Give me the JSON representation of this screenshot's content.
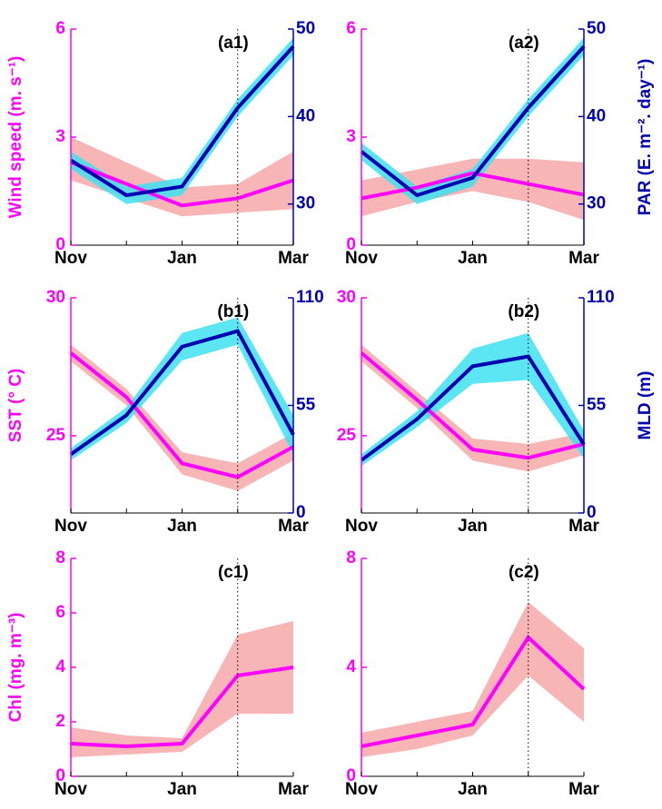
{
  "chart_data": [
    {
      "type": "line",
      "annotation": "(a1)",
      "ylabel": "Wind speed (m. s⁻¹)",
      "categories": [
        "Nov",
        null,
        "Jan",
        null,
        "Mar"
      ],
      "ylim": [
        0,
        6
      ],
      "yticks": [
        0,
        3,
        6
      ],
      "y2lim": [
        25.3,
        50
      ],
      "y2ticks": [
        30,
        40,
        50
      ],
      "series": [
        {
          "color": "#ff00ff",
          "band_color": "#f6a8a8",
          "values": [
            2.3,
            1.7,
            1.1,
            1.3,
            1.8
          ],
          "band_low": [
            1.8,
            1.3,
            0.8,
            0.9,
            1.0
          ],
          "band_high": [
            3.0,
            2.3,
            1.6,
            1.7,
            2.6
          ]
        },
        {
          "axis": "y2",
          "color": "#0000b0",
          "band_color": "#40e0f0",
          "values": [
            35,
            31,
            32,
            41,
            48
          ],
          "band_low": [
            34,
            30,
            31,
            40,
            47
          ],
          "band_high": [
            36,
            32,
            33,
            42,
            49
          ]
        }
      ]
    },
    {
      "type": "line",
      "annotation": "(a2)",
      "y2label": "PAR (E. m⁻². day⁻¹)",
      "categories": [
        "Nov",
        null,
        "Jan",
        null,
        "Mar"
      ],
      "ylim": [
        0,
        6
      ],
      "yticks": [
        0,
        3,
        6
      ],
      "y2lim": [
        25.3,
        50
      ],
      "y2ticks": [
        30,
        40,
        50
      ],
      "series": [
        {
          "color": "#ff00ff",
          "band_color": "#f6a8a8",
          "values": [
            1.3,
            1.6,
            2.0,
            1.7,
            1.4
          ],
          "band_low": [
            0.8,
            1.2,
            1.5,
            1.2,
            0.7
          ],
          "band_high": [
            1.8,
            2.1,
            2.4,
            2.4,
            2.3
          ]
        },
        {
          "axis": "y2",
          "color": "#0000b0",
          "band_color": "#40e0f0",
          "values": [
            36,
            31,
            33,
            41,
            48
          ],
          "band_low": [
            35,
            30,
            32,
            40,
            47
          ],
          "band_high": [
            37,
            32,
            34,
            42,
            49
          ]
        }
      ]
    },
    {
      "type": "line",
      "annotation": "(b1)",
      "ylabel": "SST (° C)",
      "categories": [
        "Nov",
        null,
        "Jan",
        null,
        "Mar"
      ],
      "ylim": [
        22.2,
        30
      ],
      "yticks": [
        25,
        30
      ],
      "y2lim": [
        0,
        110
      ],
      "y2ticks": [
        0,
        55,
        110
      ],
      "series": [
        {
          "color": "#ff00ff",
          "band_color": "#f6a8a8",
          "values": [
            28.0,
            26.4,
            24.0,
            23.5,
            24.6
          ],
          "band_low": [
            27.7,
            26.1,
            23.6,
            23.0,
            24.1
          ],
          "band_high": [
            28.3,
            26.7,
            24.4,
            24.0,
            25.1
          ]
        },
        {
          "axis": "y2",
          "color": "#0000b0",
          "band_color": "#40e0f0",
          "values": [
            30,
            50,
            85,
            93,
            40
          ],
          "band_low": [
            27,
            46,
            78,
            86,
            30
          ],
          "band_high": [
            33,
            54,
            92,
            100,
            50
          ]
        }
      ]
    },
    {
      "type": "line",
      "annotation": "(b2)",
      "y2label": "MLD (m)",
      "categories": [
        "Nov",
        null,
        "Jan",
        null,
        "Mar"
      ],
      "ylim": [
        22.2,
        30
      ],
      "yticks": [
        25,
        30
      ],
      "y2lim": [
        0,
        110
      ],
      "y2ticks": [
        0,
        55,
        110
      ],
      "series": [
        {
          "color": "#ff00ff",
          "band_color": "#f6a8a8",
          "values": [
            28.0,
            26.3,
            24.5,
            24.2,
            24.7
          ],
          "band_low": [
            27.7,
            26.0,
            24.1,
            23.7,
            24.3
          ],
          "band_high": [
            28.3,
            26.6,
            24.9,
            24.7,
            25.1
          ]
        },
        {
          "axis": "y2",
          "color": "#0000b0",
          "band_color": "#40e0f0",
          "values": [
            27,
            48,
            75,
            80,
            35
          ],
          "band_low": [
            24,
            44,
            66,
            68,
            28
          ],
          "band_high": [
            30,
            52,
            84,
            92,
            42
          ]
        }
      ]
    },
    {
      "type": "line",
      "annotation": "(c1)",
      "ylabel": "Chl (mg. m⁻³)",
      "categories": [
        "Nov",
        null,
        "Jan",
        null,
        "Mar"
      ],
      "ylim": [
        0,
        8
      ],
      "yticks": [
        0,
        2,
        4,
        6,
        8
      ],
      "series": [
        {
          "color": "#ff00ff",
          "band_color": "#f6a8a8",
          "values": [
            1.2,
            1.1,
            1.2,
            3.7,
            4.0
          ],
          "band_low": [
            0.7,
            0.8,
            0.9,
            2.3,
            2.3
          ],
          "band_high": [
            1.8,
            1.5,
            1.4,
            5.2,
            5.7
          ]
        }
      ]
    },
    {
      "type": "line",
      "annotation": "(c2)",
      "categories": [
        "Nov",
        null,
        "Jan",
        null,
        "Mar"
      ],
      "ylim": [
        0,
        8
      ],
      "yticks": [
        0,
        4,
        8
      ],
      "series": [
        {
          "color": "#ff00ff",
          "band_color": "#f6a8a8",
          "values": [
            1.1,
            1.5,
            1.9,
            5.1,
            3.2
          ],
          "band_low": [
            0.7,
            1.0,
            1.5,
            3.7,
            2.0
          ],
          "band_high": [
            1.6,
            2.0,
            2.4,
            6.4,
            4.7
          ]
        }
      ]
    }
  ]
}
